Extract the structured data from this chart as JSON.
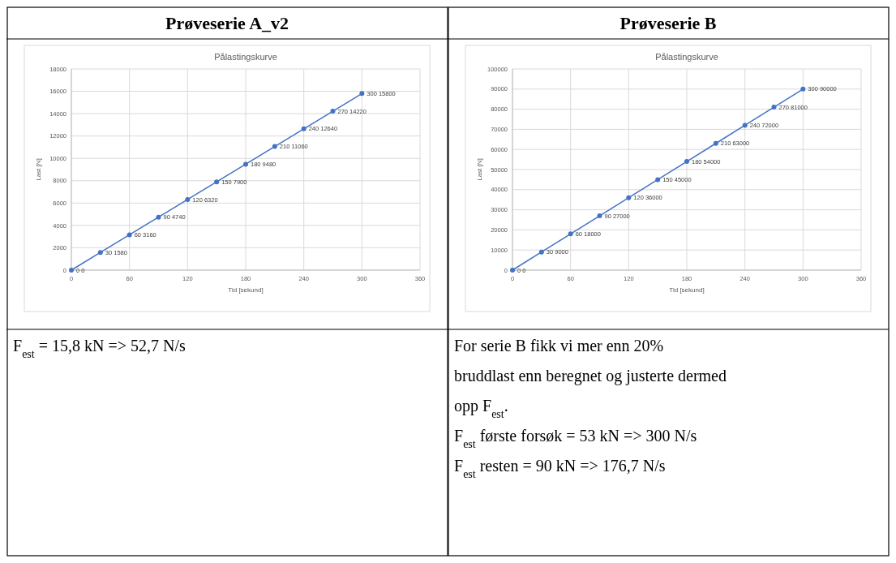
{
  "chart_data": [
    {
      "type": "line",
      "title": "Pålastingskurve",
      "xlabel": "Tid [sekund]",
      "ylabel": "Last [N]",
      "x": [
        0,
        30,
        60,
        90,
        120,
        150,
        180,
        210,
        240,
        270,
        300
      ],
      "series": [
        {
          "color": "#4472c4",
          "values": [
            0,
            1580,
            3160,
            4740,
            6320,
            7900,
            9480,
            11060,
            12640,
            14220,
            15800
          ],
          "value_labels": [
            "0 0",
            "30 1580",
            "60 3160",
            "90 4740",
            "120 6320",
            "150 7900",
            "180 9480",
            "210 11060",
            "240 12640",
            "270 14220",
            "300 15800"
          ]
        }
      ],
      "xlim": [
        0,
        360
      ],
      "xticks": [
        0,
        60,
        120,
        180,
        240,
        300,
        360
      ],
      "ylim": [
        0,
        18000
      ],
      "yticks": [
        0,
        2000,
        4000,
        6000,
        8000,
        10000,
        12000,
        14000,
        16000,
        18000
      ],
      "grid": true,
      "marker": "circle",
      "line_style": "solid",
      "annotations": [
        "Prøveserie A_v2",
        "F$_{est}$ = 15,8 kN => 52,7 N/s"
      ]
    },
    {
      "type": "line",
      "title": "Pålastingskurve",
      "xlabel": "Tid [sekund]",
      "ylabel": "Last [N]",
      "x": [
        0,
        30,
        60,
        90,
        120,
        150,
        180,
        210,
        240,
        270,
        300
      ],
      "series": [
        {
          "color": "#4472c4",
          "values": [
            0,
            9000,
            18000,
            27000,
            36000,
            45000,
            54000,
            63000,
            72000,
            81000,
            90000
          ],
          "value_labels": [
            "0 0",
            "30 9000",
            "60 18000",
            "90 27000",
            "120 36000",
            "150 45000",
            "180 54000",
            "210 63000",
            "240 72000",
            "270 81000",
            "300 90000"
          ]
        }
      ],
      "xlim": [
        0,
        360
      ],
      "xticks": [
        0,
        60,
        120,
        180,
        240,
        300,
        360
      ],
      "ylim": [
        0,
        100000
      ],
      "yticks": [
        0,
        10000,
        20000,
        30000,
        40000,
        50000,
        60000,
        70000,
        80000,
        90000,
        100000
      ],
      "grid": true,
      "marker": "circle",
      "line_style": "solid",
      "annotations": [
        "Prøveserie B",
        "For serie B fikk vi mer enn 20%",
        "bruddlast enn beregnet og justerte dermed",
        "opp F$_{est}$.",
        "F$_{est}$ første forsøk = 53 kN => 300 N/s",
        "F$_{est}$ resten = 90 kN => 176,7 N/s"
      ]
    }
  ]
}
